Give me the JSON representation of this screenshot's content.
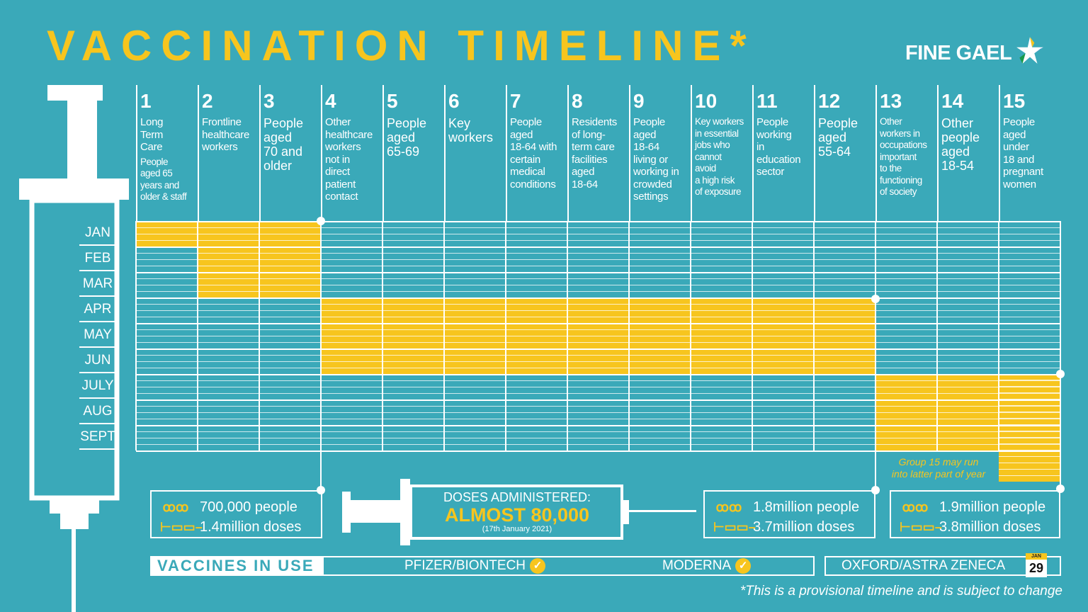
{
  "title": "VACCINATION TIMELINE",
  "title_mark": "*",
  "logo": "FINE GAEL",
  "colors": {
    "background": "#3aa9b9",
    "accent": "#f7c51e",
    "line": "#ffffff"
  },
  "groups": [
    {
      "num": "1",
      "label": "Long\nTerm\nCare",
      "sub": "People\naged 65\nyears and\nolder & staff"
    },
    {
      "num": "2",
      "label": "Frontline\nhealthcare\nworkers"
    },
    {
      "num": "3",
      "label": "People\naged\n70 and\nolder",
      "big": true
    },
    {
      "num": "4",
      "label": "Other\nhealthcare\nworkers\nnot in\ndirect\npatient\ncontact"
    },
    {
      "num": "5",
      "label": "People\naged\n65-69",
      "big": true
    },
    {
      "num": "6",
      "label": "Key\nworkers",
      "big": true
    },
    {
      "num": "7",
      "label": "People\naged\n18-64 with\ncertain\nmedical\nconditions"
    },
    {
      "num": "8",
      "label": "Residents\nof long-\nterm care\nfacilities\naged\n18-64"
    },
    {
      "num": "9",
      "label": "People\naged\n18-64\nliving or\nworking in\ncrowded\nsettings"
    },
    {
      "num": "10",
      "label": "Key workers\nin essential\njobs who\ncannot\navoid\na high risk\nof exposure",
      "small": true
    },
    {
      "num": "11",
      "label": "People\nworking\nin\neducation\nsector"
    },
    {
      "num": "12",
      "label": "People\naged\n55-64",
      "big": true
    },
    {
      "num": "13",
      "label": "Other\nworkers in\noccupations\nimportant\nto the\nfunctioning\nof society",
      "small": true
    },
    {
      "num": "14",
      "label": "Other\npeople\naged\n18-54",
      "big": true
    },
    {
      "num": "15",
      "label": "People\naged\nunder\n18 and\npregnant\nwomen"
    }
  ],
  "months": [
    "JAN",
    "FEB",
    "MAR",
    "APR",
    "MAY",
    "JUN",
    "JULY",
    "AUG",
    "SEPT"
  ],
  "phases": [
    {
      "groups": [
        1,
        1
      ],
      "months": [
        "JAN",
        "JAN"
      ]
    },
    {
      "groups": [
        2,
        3
      ],
      "months": [
        "JAN",
        "MAR"
      ]
    },
    {
      "groups": [
        4,
        12
      ],
      "months": [
        "APR",
        "JUN"
      ]
    },
    {
      "groups": [
        13,
        14
      ],
      "months": [
        "JULY",
        "SEPT"
      ]
    },
    {
      "groups": [
        15,
        15
      ],
      "months": [
        "JULY",
        "beyond SEPT"
      ]
    }
  ],
  "group15_note": "Group 15 may run\ninto latter part of year",
  "summaries": [
    {
      "people": "700,000 people",
      "doses": "1.4million doses"
    },
    {
      "people": "1.8million people",
      "doses": "3.7million doses"
    },
    {
      "people": "1.9million people",
      "doses": "3.8million doses"
    }
  ],
  "doses": {
    "label": "DOSES ADMINISTERED:",
    "value": "ALMOST 80,000",
    "date": "(17th January 2021)"
  },
  "vaccines": {
    "label": "VACCINES IN USE",
    "items": [
      {
        "name": "PFIZER/BIONTECH",
        "status": "check"
      },
      {
        "name": "MODERNA",
        "status": "check"
      },
      {
        "name": "OXFORD/ASTRA ZENECA",
        "cal_month": "JAN",
        "cal_day": "29"
      }
    ]
  },
  "footnote": "*This is a provisional timeline and is subject to change"
}
